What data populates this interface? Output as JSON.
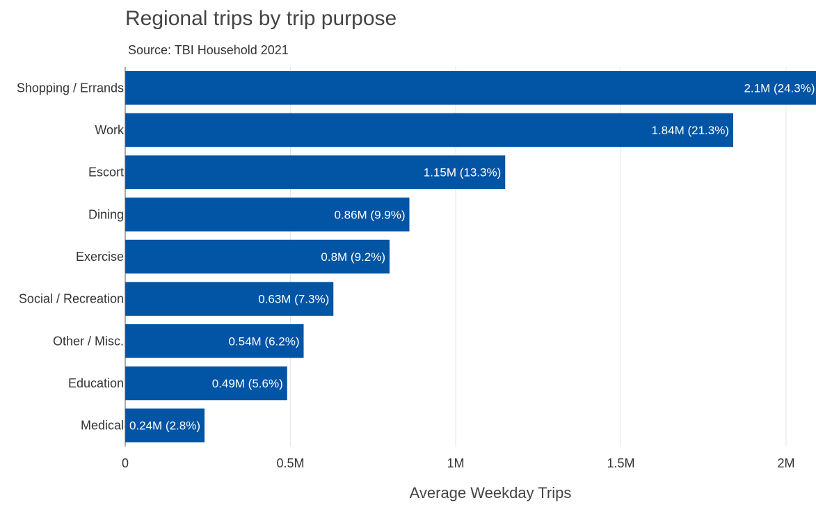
{
  "chart_data": {
    "type": "bar",
    "orientation": "horizontal",
    "title": "Regional trips by trip purpose",
    "subtitle": "Source: TBI Household 2021",
    "xlabel": "Average Weekday Trips",
    "ylabel": "",
    "xlim": [
      0,
      2100000
    ],
    "grid": true,
    "bar_color": "#0254A4",
    "x_ticks": [
      {
        "value": 0,
        "label": "0"
      },
      {
        "value": 500000,
        "label": "0.5M"
      },
      {
        "value": 1000000,
        "label": "1M"
      },
      {
        "value": 1500000,
        "label": "1.5M"
      },
      {
        "value": 2000000,
        "label": "2M"
      }
    ],
    "categories": [
      "Shopping / Errands",
      "Work",
      "Escort",
      "Dining",
      "Exercise",
      "Social / Recreation",
      "Other / Misc.",
      "Education",
      "Medical"
    ],
    "values": [
      2100000,
      1840000,
      1150000,
      860000,
      800000,
      630000,
      540000,
      490000,
      240000
    ],
    "data_labels": [
      "2.1M (24.3%)",
      "1.84M (21.3%)",
      "1.15M (13.3%)",
      "0.86M (9.9%)",
      "0.8M (9.2%)",
      "0.63M (7.3%)",
      "0.54M (6.2%)",
      "0.49M (5.6%)",
      "0.24M (2.8%)"
    ]
  }
}
